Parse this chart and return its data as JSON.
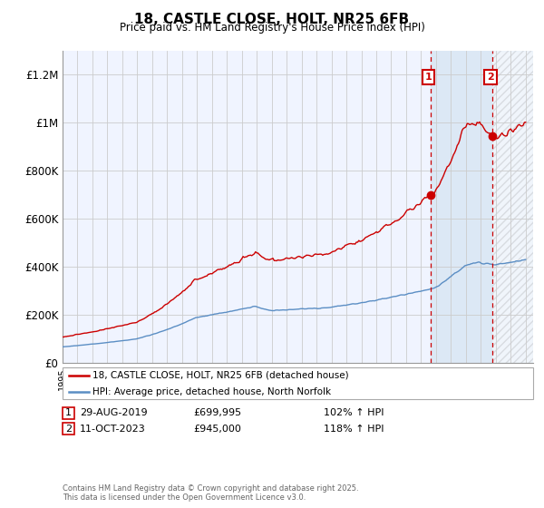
{
  "title": "18, CASTLE CLOSE, HOLT, NR25 6FB",
  "subtitle": "Price paid vs. HM Land Registry's House Price Index (HPI)",
  "ylabel_ticks": [
    "£0",
    "£200K",
    "£400K",
    "£600K",
    "£800K",
    "£1M",
    "£1.2M"
  ],
  "ytick_values": [
    0,
    200000,
    400000,
    600000,
    800000,
    1000000,
    1200000
  ],
  "ylim": [
    0,
    1300000
  ],
  "xlim_start": 1995.0,
  "xlim_end": 2026.5,
  "hpi_color": "#5b8ec4",
  "price_color": "#cc0000",
  "marker1_x": 2019.66,
  "marker1_y": 699995,
  "marker2_x": 2023.79,
  "marker2_y": 945000,
  "shade_color": "#dce8f5",
  "hatch_color": "#c8c8c8",
  "legend_line1": "18, CASTLE CLOSE, HOLT, NR25 6FB (detached house)",
  "legend_line2": "HPI: Average price, detached house, North Norfolk",
  "annotation1_date": "29-AUG-2019",
  "annotation1_price": "£699,995",
  "annotation1_hpi": "102% ↑ HPI",
  "annotation2_date": "11-OCT-2023",
  "annotation2_price": "£945,000",
  "annotation2_hpi": "118% ↑ HPI",
  "footer": "Contains HM Land Registry data © Crown copyright and database right 2025.\nThis data is licensed under the Open Government Licence v3.0.",
  "background_color": "#ffffff",
  "grid_color": "#cccccc",
  "plot_bg_color": "#f0f4ff"
}
